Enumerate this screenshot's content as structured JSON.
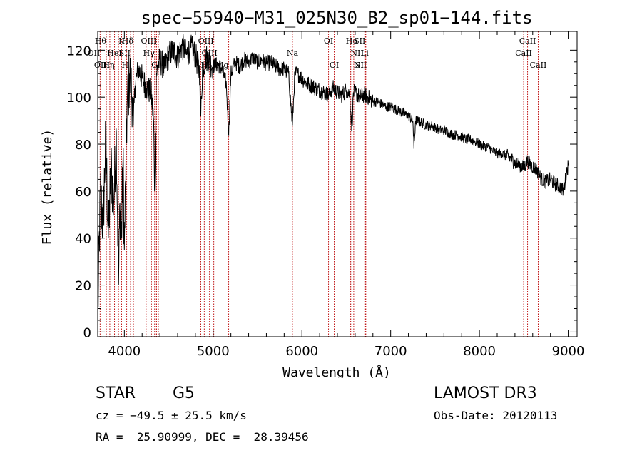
{
  "chart_data": {
    "type": "line",
    "title": "spec−55940−M31_025N30_B2_sp01−144.fits",
    "xlabel": "Wavelength (Å)",
    "ylabel": "Flux (relative)",
    "xlim": [
      3700,
      9100
    ],
    "ylim": [
      -2,
      128
    ],
    "x_ticks": [
      4000,
      5000,
      6000,
      7000,
      8000,
      9000
    ],
    "y_ticks": [
      0,
      20,
      40,
      60,
      80,
      100,
      120
    ],
    "grid": false,
    "series": [
      {
        "name": "spectrum",
        "x": [
          3700,
          3730,
          3760,
          3790,
          3820,
          3850,
          3880,
          3910,
          3935,
          3950,
          3968,
          3985,
          4000,
          4030,
          4060,
          4090,
          4101,
          4120,
          4160,
          4200,
          4250,
          4300,
          4330,
          4340,
          4360,
          4400,
          4450,
          4500,
          4550,
          4600,
          4650,
          4700,
          4750,
          4800,
          4850,
          4861,
          4880,
          4920,
          4960,
          5000,
          5050,
          5100,
          5150,
          5175,
          5200,
          5250,
          5300,
          5350,
          5400,
          5450,
          5500,
          5550,
          5600,
          5650,
          5700,
          5750,
          5800,
          5850,
          5893,
          5920,
          5950,
          6000,
          6050,
          6100,
          6150,
          6200,
          6250,
          6300,
          6350,
          6400,
          6450,
          6500,
          6540,
          6563,
          6580,
          6600,
          6650,
          6700,
          6750,
          6800,
          6850,
          6900,
          6950,
          7000,
          7050,
          7100,
          7150,
          7200,
          7250,
          7262,
          7280,
          7300,
          7350,
          7400,
          7450,
          7500,
          7550,
          7600,
          7650,
          7700,
          7750,
          7800,
          7850,
          7900,
          7950,
          8000,
          8050,
          8100,
          8150,
          8200,
          8250,
          8300,
          8350,
          8400,
          8450,
          8500,
          8542,
          8580,
          8620,
          8662,
          8700,
          8750,
          8800,
          8850,
          8900,
          8950,
          8980,
          9000
        ],
        "values": [
          5,
          60,
          45,
          82,
          40,
          70,
          55,
          85,
          20,
          55,
          40,
          75,
          35,
          95,
          110,
          100,
          88,
          105,
          112,
          108,
          104,
          102,
          90,
          60,
          110,
          116,
          112,
          118,
          120,
          117,
          122,
          118,
          121,
          118,
          110,
          92,
          112,
          117,
          115,
          113,
          114,
          112,
          105,
          84,
          110,
          115,
          113,
          116,
          115,
          117,
          115,
          116,
          114,
          115,
          113,
          112,
          112,
          110,
          88,
          110,
          110,
          108,
          106,
          105,
          104,
          103,
          102,
          101,
          104,
          102,
          101,
          103,
          101,
          86,
          102,
          102,
          100,
          101,
          100,
          98,
          98,
          97,
          96,
          96,
          95,
          94,
          93,
          92,
          90,
          78,
          90,
          90,
          89,
          88,
          88,
          87,
          86,
          86,
          85,
          84,
          84,
          83,
          82,
          82,
          81,
          80,
          79,
          79,
          77,
          76,
          76,
          75,
          74,
          72,
          71,
          70,
          73,
          71,
          70,
          68,
          65,
          64,
          65,
          63,
          62,
          60,
          68,
          71
        ]
      }
    ],
    "line_marks": [
      {
        "name": "Hθ",
        "x": 3797,
        "row": 0,
        "anchor": "end"
      },
      {
        "name": "OII",
        "x": 3727,
        "row": 1,
        "anchor": "end"
      },
      {
        "name": "OIII",
        "x": 3836,
        "row": 2,
        "anchor": "end"
      },
      {
        "name": "Hη",
        "x": 3889,
        "row": 2,
        "anchor": "end"
      },
      {
        "name": "HeI",
        "x": 3889,
        "row": 1,
        "anchor": "middle"
      },
      {
        "name": "K",
        "x": 3934,
        "row": 0,
        "anchor": "start"
      },
      {
        "name": "SII",
        "x": 4070,
        "row": 1,
        "anchor": "end"
      },
      {
        "name": "H",
        "x": 3969,
        "row": 2,
        "anchor": "start"
      },
      {
        "name": "Hδ",
        "x": 4102,
        "row": 0,
        "anchor": "end"
      },
      {
        "name": "OIII",
        "x": 4363,
        "row": 0,
        "anchor": "end"
      },
      {
        "name": "Hγ",
        "x": 4341,
        "row": 1,
        "anchor": "end"
      },
      {
        "name": "G",
        "x": 4305,
        "row": 2,
        "anchor": "start"
      },
      {
        "name": "OIII",
        "x": 5007,
        "row": 0,
        "anchor": "end"
      },
      {
        "name": "OIII",
        "x": 4959,
        "row": 1,
        "anchor": "middle"
      },
      {
        "name": "Hβ",
        "x": 4861,
        "row": 2,
        "anchor": "start"
      },
      {
        "name": "Mg",
        "x": 5175,
        "row": 2,
        "anchor": "end"
      },
      {
        "name": "Na",
        "x": 5893,
        "row": 1,
        "anchor": "middle"
      },
      {
        "name": "OI",
        "x": 6300,
        "row": 0,
        "anchor": "middle"
      },
      {
        "name": "OI",
        "x": 6364,
        "row": 2,
        "anchor": "middle"
      },
      {
        "name": "Hα",
        "x": 6563,
        "row": 0,
        "anchor": "middle"
      },
      {
        "name": "SII",
        "x": 6716,
        "row": 0,
        "anchor": "end"
      },
      {
        "name": "NII",
        "x": 6548,
        "row": 1,
        "anchor": "start"
      },
      {
        "name": "Li",
        "x": 6708,
        "row": 1,
        "anchor": "middle"
      },
      {
        "name": "NII",
        "x": 6584,
        "row": 2,
        "anchor": "start"
      },
      {
        "name": "SII",
        "x": 6731,
        "row": 2,
        "anchor": "end"
      },
      {
        "name": "CaII",
        "x": 8542,
        "row": 0,
        "anchor": "middle"
      },
      {
        "name": "CaII",
        "x": 8498,
        "row": 1,
        "anchor": "middle"
      },
      {
        "name": "CaII",
        "x": 8662,
        "row": 2,
        "anchor": "middle"
      }
    ],
    "extra_line_x": [
      4026,
      4245,
      4383,
      4900,
      6717
    ]
  },
  "info": {
    "class": "STAR",
    "subclass": "G5",
    "survey": "LAMOST DR3",
    "cz": "cz = −49.5 ± 25.5 km/s",
    "obs_date": "Obs-Date: 20120113",
    "radec": "RA =  25.90999, DEC =  28.39456"
  },
  "colors": {
    "spectrum": "#000000",
    "line_marks": "#c01818",
    "axes": "#000000"
  }
}
